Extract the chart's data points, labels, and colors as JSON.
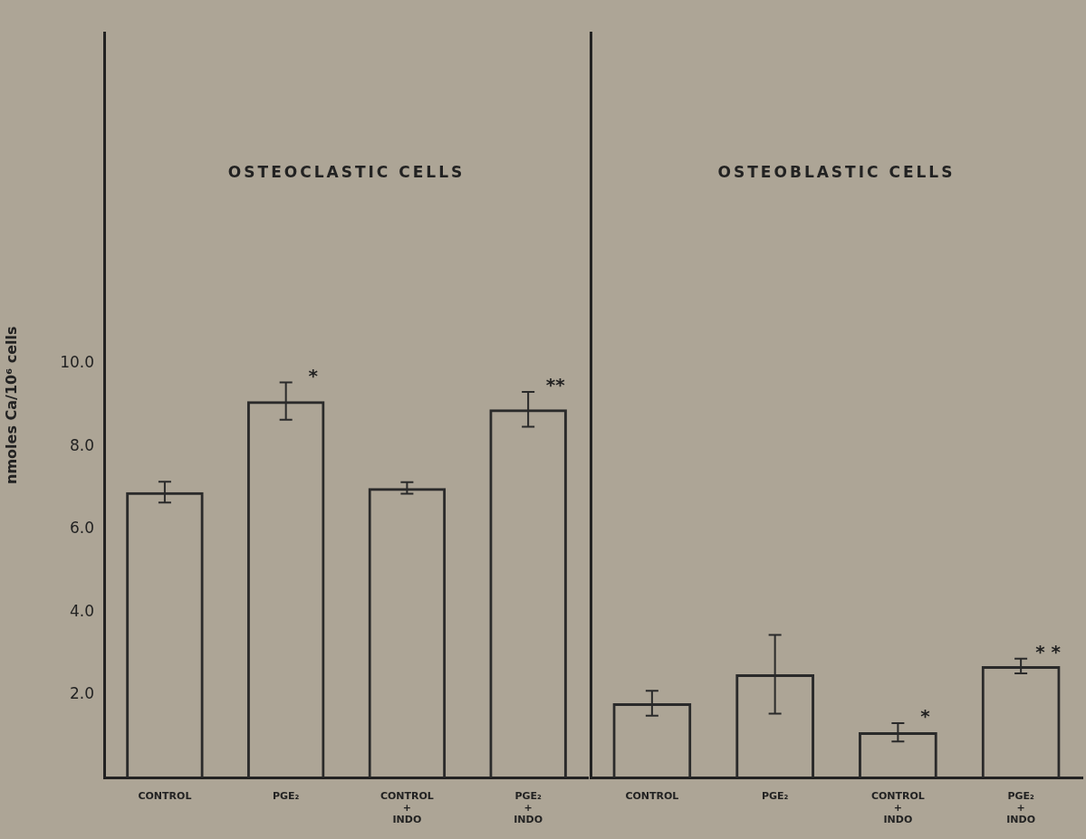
{
  "chart_data": [
    {
      "type": "bar",
      "title": "OSTEOCLASTIC CELLS",
      "ylabel": "nmoles Ca/10⁶ cells",
      "categories": [
        "CONTROL",
        "PGE₂",
        "CONTROL + INDO",
        "PGE₂ + INDO"
      ],
      "series": [
        {
          "color": "#2a2a2a",
          "values": [
            6.9,
            9.1,
            7.0,
            8.9
          ],
          "errors": [
            0.25,
            0.45,
            0.14,
            0.42
          ]
        }
      ],
      "ylim": [
        0,
        18
      ],
      "yticks": [
        {
          "value": 2,
          "label": "2.0"
        },
        {
          "value": 4,
          "label": "4.0"
        },
        {
          "value": 6,
          "label": "6.0"
        },
        {
          "value": 8,
          "label": "8.0"
        },
        {
          "value": 10,
          "label": "10.0"
        }
      ],
      "annotations": [
        {
          "text": "*",
          "x": "PGE₂",
          "y": 9.1
        },
        {
          "text": "**",
          "x": "PGE₂ + INDO",
          "y": 8.9
        }
      ],
      "grid": false,
      "legend": false
    },
    {
      "type": "bar",
      "title": "OSTEOBLASTIC CELLS",
      "categories": [
        "CONTROL",
        "PGE₂",
        "CONTROL + INDO",
        "PGE₂ + INDO"
      ],
      "series": [
        {
          "color": "#2a2a2a",
          "values": [
            1.8,
            2.5,
            1.1,
            2.7
          ],
          "errors": [
            0.3,
            0.95,
            0.22,
            0.18
          ]
        }
      ],
      "ylim": [
        0,
        18
      ],
      "tick_labels": "x",
      "annotations": [
        {
          "text": "*",
          "x": "CONTROL + INDO",
          "y": 1.1
        },
        {
          "text": "* *",
          "x": "PGE₂ + INDO",
          "y": 2.7
        }
      ],
      "grid": false,
      "legend": false
    }
  ]
}
